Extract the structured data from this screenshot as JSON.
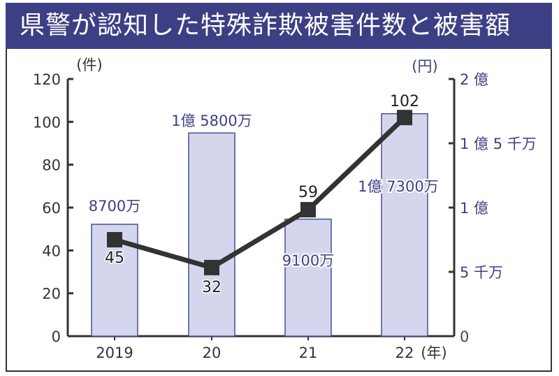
{
  "title": "県警が認知した特殊詐欺被害件数と被害額",
  "chart_data": {
    "type": "bar+line",
    "title": "県警が認知した特殊詐欺被害件数と被害額",
    "categories": [
      "2019",
      "20",
      "21",
      "22"
    ],
    "x_unit": "(年)",
    "left_axis": {
      "unit": "(件)",
      "ylim": [
        0,
        120
      ],
      "ticks": [
        "0",
        "20",
        "40",
        "60",
        "80",
        "100",
        "120"
      ]
    },
    "right_axis": {
      "unit": "(円)",
      "ylim_oku": [
        0,
        2
      ],
      "ticks": [
        "0",
        "5 千万",
        "1 億",
        "1 億 5 千万",
        "2 億"
      ]
    },
    "series": [
      {
        "type": "bar",
        "axis": "right",
        "values_oku": [
          0.87,
          1.58,
          0.91,
          1.73
        ],
        "labels": [
          "8700万",
          "1億 5800万",
          "9100万",
          "1億 7300万"
        ],
        "color": "#d4d6ee"
      },
      {
        "type": "line",
        "axis": "left",
        "values": [
          45,
          32,
          59,
          102
        ],
        "labels": [
          "45",
          "32",
          "59",
          "102"
        ],
        "color": "#333333"
      }
    ],
    "grid": false
  }
}
